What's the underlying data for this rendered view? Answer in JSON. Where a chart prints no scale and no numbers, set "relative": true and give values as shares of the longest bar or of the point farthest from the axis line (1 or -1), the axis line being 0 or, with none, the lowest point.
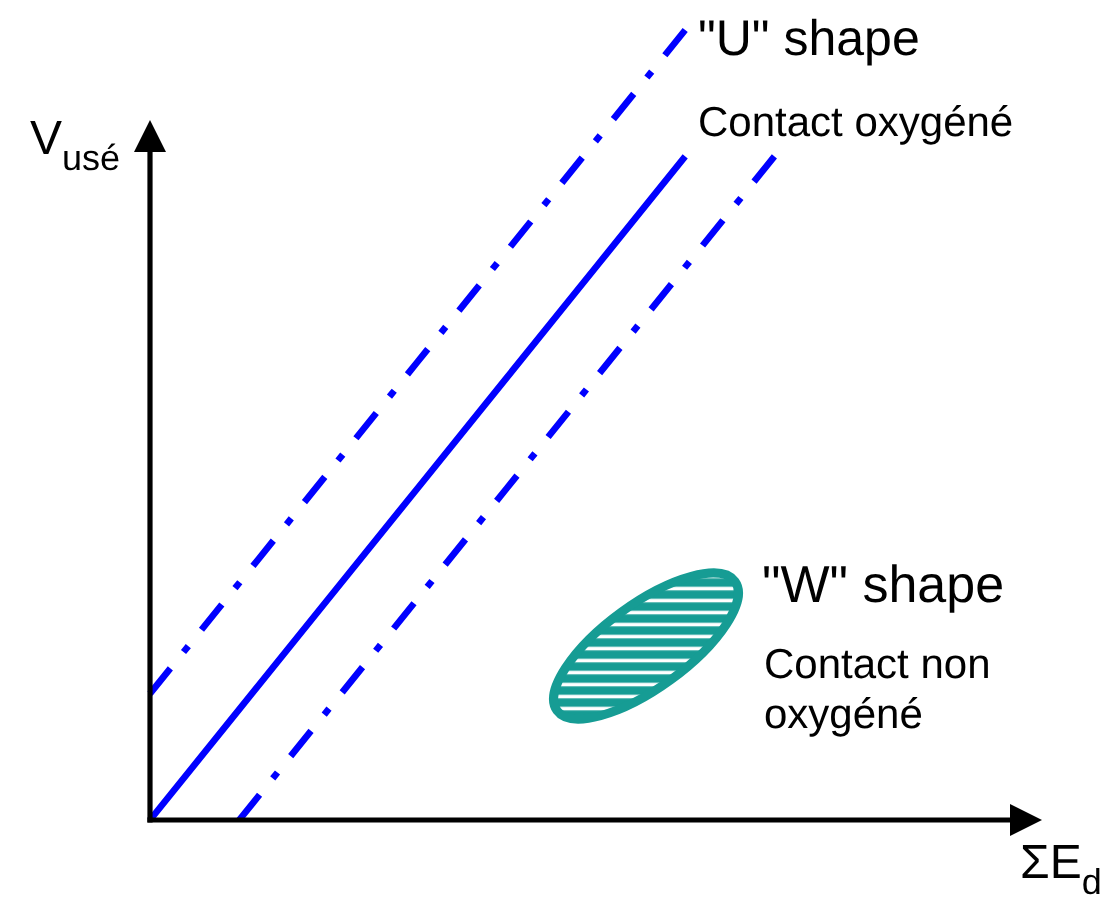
{
  "chart_data": {
    "type": "line",
    "relative": true,
    "xlabel": "ΣE$_{d}$",
    "ylabel": "V$_{usé}$",
    "categories": [
      null,
      null,
      null,
      null,
      null,
      null,
      null,
      null,
      null,
      null,
      null
    ],
    "series": [
      {
        "color": "#0000ff",
        "line_style": "dashdot",
        "values": [
          0.16,
          0.3,
          0.44,
          0.58,
          0.72,
          0.86,
          1.0,
          null,
          null,
          null,
          null
        ]
      },
      {
        "color": "#0000ff",
        "line_style": "solid",
        "values": [
          0,
          0.14,
          0.28,
          0.42,
          0.56,
          0.7,
          0.84,
          null,
          null,
          null,
          null
        ]
      },
      {
        "color": "#0000ff",
        "line_style": "dashdot",
        "values": [
          null,
          0,
          0.14,
          0.28,
          0.42,
          0.56,
          0.7,
          0.84,
          null,
          null,
          null
        ]
      }
    ],
    "annotations": [
      "\"U\" shape",
      "Contact oxygéné",
      "\"W\" shape",
      "Contact non oxygéné"
    ],
    "marker": "none"
  }
}
